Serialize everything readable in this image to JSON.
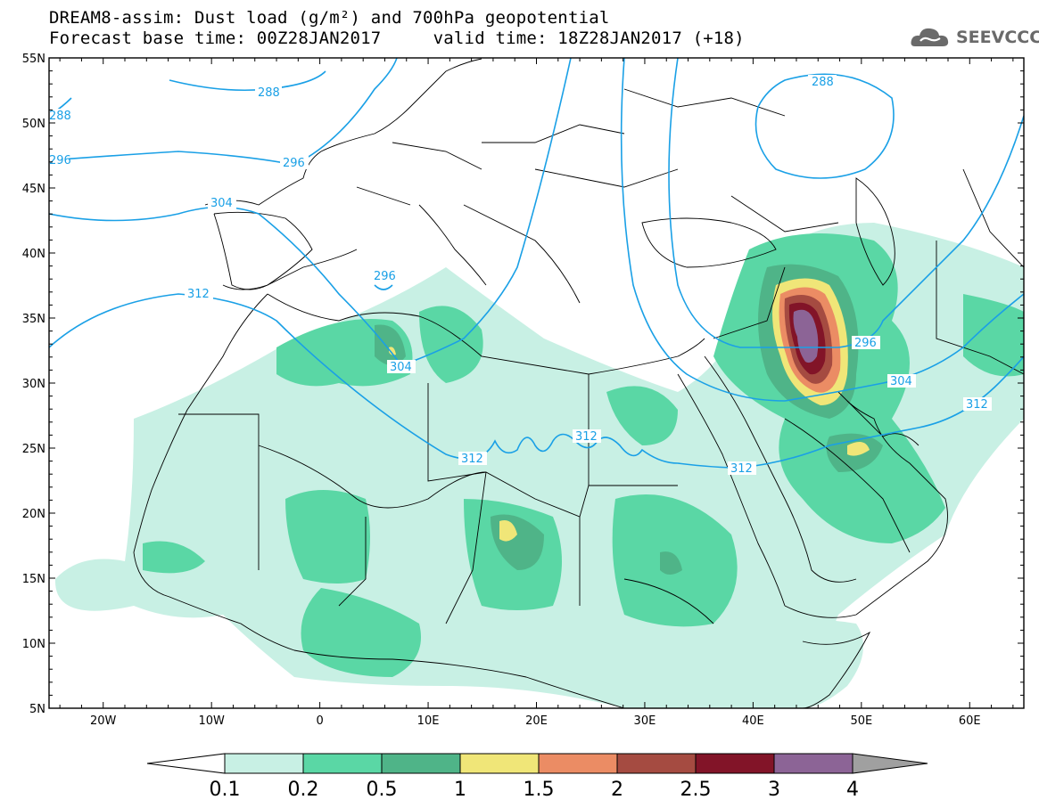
{
  "title": {
    "line1": "DREAM8-assim: Dust load (g/m²) and 700hPa geopotential",
    "line2": "Forecast base time: 00Z28JAN2017     valid time: 18Z28JAN2017 (+18)"
  },
  "logo": {
    "text": "SEEVCCC",
    "icon": "cloud-icon"
  },
  "map": {
    "lon_range": [
      -25,
      65
    ],
    "lat_range": [
      5,
      55
    ],
    "lat_ticks": [
      "55N",
      "50N",
      "45N",
      "40N",
      "35N",
      "30N",
      "25N",
      "20N",
      "15N",
      "10N",
      "5N"
    ],
    "lon_ticks": [
      "20W",
      "10W",
      "0",
      "10E",
      "20E",
      "30E",
      "40E",
      "50E",
      "60E"
    ],
    "contour_color": "#1aa0e6",
    "contour_labels": [
      "288",
      "288",
      "288",
      "296",
      "296",
      "304",
      "296",
      "304",
      "312",
      "312",
      "312",
      "312",
      "296",
      "304",
      "312"
    ]
  },
  "colorbar": {
    "labels": [
      "0.1",
      "0.2",
      "0.5",
      "1",
      "1.5",
      "2",
      "2.5",
      "3",
      "4"
    ],
    "colors": [
      "#c8f0e4",
      "#5ad7a5",
      "#4fb488",
      "#f0e678",
      "#eb8c64",
      "#a54b41",
      "#821428",
      "#8c6496"
    ]
  },
  "colors": {
    "dust_01": "#c8f0e4",
    "dust_02": "#5ad7a5",
    "dust_05": "#4fb488",
    "dust_1": "#f0e678",
    "dust_15": "#eb8c64",
    "dust_2": "#a54b41",
    "dust_25": "#821428",
    "dust_3": "#8c6496"
  }
}
